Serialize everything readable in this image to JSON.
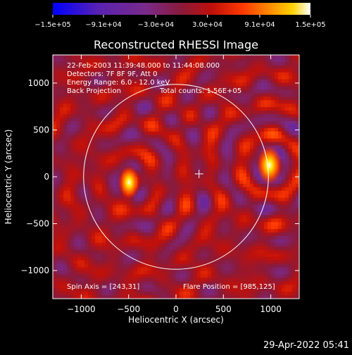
{
  "chart_data": {
    "type": "heatmap",
    "title": "Reconstructed RHESSI Image",
    "xlabel": "Heliocentric X (arcsec)",
    "ylabel": "Heliocentric Y (arcsec)",
    "xlim": [
      -1300,
      1300
    ],
    "ylim": [
      -1300,
      1300
    ],
    "xticks": [
      -1000,
      -500,
      0,
      500,
      1000
    ],
    "yticks": [
      -1000,
      -500,
      0,
      500,
      1000
    ],
    "xtick_labels": [
      "−1000",
      "−500",
      "0",
      "500",
      "1000"
    ],
    "ytick_labels": [
      "−1000",
      "−500",
      "0",
      "500",
      "1000"
    ],
    "colorbar": {
      "range": [
        -150000,
        150000
      ],
      "ticks": [
        -150000,
        -91000,
        -30000,
        30000,
        91000,
        150000
      ],
      "tick_labels": [
        "−1.5e+05",
        "−9.1e+04",
        "−3.0e+04",
        "3.0e+04",
        "9.1e+04",
        "1.5e+05"
      ],
      "colormap": [
        "#0000ff",
        "#5a22b0",
        "#7a2a8a",
        "#8a1a3a",
        "#c0100a",
        "#ff3a00",
        "#ff8a00",
        "#ffd200",
        "#ffffff"
      ]
    },
    "annotations": [
      "22-Feb-2003 11:39:48.000 to 11:44:08.000",
      "Detectors: 7F 8F 9F, Att 0",
      "Energy Range: 6.0 - 12.0 keV",
      "Back Projection",
      "Total counts: 1.56E+05"
    ],
    "spin_axis_text": "Spin Axis = [243,31]",
    "flare_position_text": "Flare Position = [985,125]",
    "spin_axis": [
      243,
      31
    ],
    "flare_position": [
      985,
      125
    ],
    "solar_limb_radius": 975,
    "sources": [
      {
        "x": 985,
        "y": 125,
        "peak": 150000
      },
      {
        "x": -495,
        "y": -60,
        "peak": 120000
      }
    ],
    "grid": false
  },
  "timestamp": "29-Apr-2022 05:41"
}
